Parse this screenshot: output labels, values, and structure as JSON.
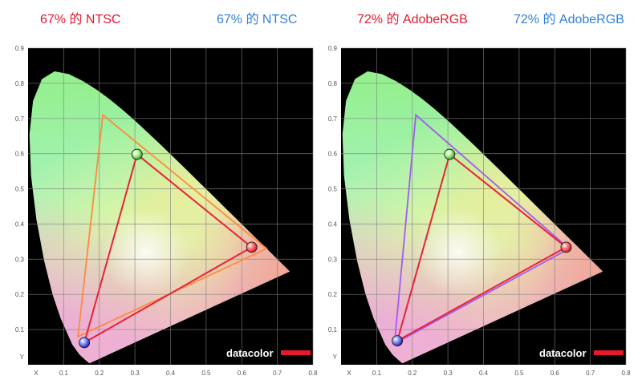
{
  "headers": {
    "left_red": "67% 的 NTSC",
    "left_blue": "67% 的 NTSC",
    "right_red": "72% 的 AdobeRGB",
    "right_blue": "72% 的 AdobeRGB"
  },
  "colors": {
    "red_text": "#e8192c",
    "blue_text": "#2f7fd9",
    "measured": "#e8223a",
    "ntsc": "#ff8a3d",
    "adobergb": "#a05cf0",
    "brand_bar": "#e8192c"
  },
  "chart_data": [
    {
      "type": "scatter",
      "subtype": "cie-1931-chromaticity",
      "xlim": [
        0,
        0.8
      ],
      "ylim": [
        0,
        0.9
      ],
      "x_ticks": [
        "X",
        "0.1",
        "0.2",
        "0.3",
        "0.4",
        "0.5",
        "0.6",
        "0.7",
        "0.8"
      ],
      "y_ticks": [
        "Y",
        "0.1",
        "0.2",
        "0.3",
        "0.4",
        "0.5",
        "0.6",
        "0.7",
        "0.8",
        "0.9"
      ],
      "grid": true,
      "brand": "datacolor",
      "measured_gamut": {
        "points": [
          [
            0.628,
            0.334
          ],
          [
            0.306,
            0.598
          ],
          [
            0.158,
            0.063
          ]
        ]
      },
      "reference_gamut": {
        "points": [
          [
            0.67,
            0.33
          ],
          [
            0.21,
            0.71
          ],
          [
            0.14,
            0.08
          ]
        ]
      }
    },
    {
      "type": "scatter",
      "subtype": "cie-1931-chromaticity",
      "xlim": [
        0,
        0.8
      ],
      "ylim": [
        0,
        0.9
      ],
      "x_ticks": [
        "X",
        "0.1",
        "0.2",
        "0.3",
        "0.4",
        "0.5",
        "0.6",
        "0.7",
        "0.8"
      ],
      "y_ticks": [
        "Y",
        "0.1",
        "0.2",
        "0.3",
        "0.4",
        "0.5",
        "0.6",
        "0.7",
        "0.8",
        "0.9"
      ],
      "grid": true,
      "brand": "datacolor",
      "measured_gamut": {
        "points": [
          [
            0.632,
            0.334
          ],
          [
            0.305,
            0.598
          ],
          [
            0.158,
            0.068
          ]
        ]
      },
      "reference_gamut": {
        "points": [
          [
            0.64,
            0.33
          ],
          [
            0.21,
            0.71
          ],
          [
            0.15,
            0.06
          ]
        ]
      }
    }
  ]
}
